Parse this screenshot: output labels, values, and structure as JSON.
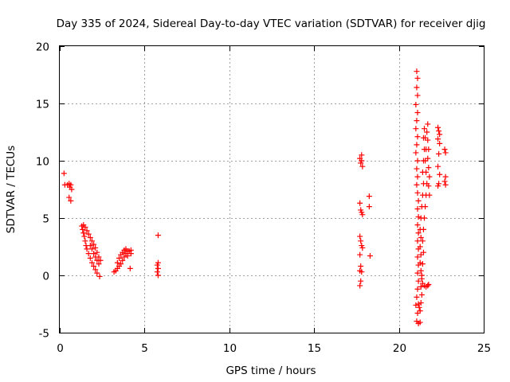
{
  "chart_data": {
    "type": "scatter",
    "title": "Day 335 of 2024, Sidereal Day-to-day VTEC variation (SDTVAR) for receiver djig",
    "xlabel": "GPS time / hours",
    "ylabel": "SDTVAR / TECUs",
    "xlim": [
      0,
      25
    ],
    "ylim": [
      -5,
      20
    ],
    "xticks": [
      "0",
      "5",
      "10",
      "15",
      "20",
      "25"
    ],
    "yticks": [
      "-5",
      "0",
      "5",
      "10",
      "15",
      "20"
    ],
    "grid": true,
    "marker": "+",
    "color": "#ff0000",
    "series": [
      {
        "points": [
          [
            0.25,
            8.9
          ],
          [
            0.3,
            7.9
          ],
          [
            0.45,
            7.9
          ],
          [
            0.55,
            8.0
          ],
          [
            0.6,
            7.7
          ],
          [
            0.65,
            7.9
          ],
          [
            0.7,
            7.5
          ],
          [
            0.55,
            6.8
          ],
          [
            0.65,
            6.5
          ],
          [
            1.3,
            4.3
          ],
          [
            1.35,
            4.0
          ],
          [
            1.4,
            3.7
          ],
          [
            1.45,
            3.4
          ],
          [
            1.5,
            3.0
          ],
          [
            1.55,
            2.6
          ],
          [
            1.6,
            2.3
          ],
          [
            1.7,
            1.9
          ],
          [
            1.8,
            1.5
          ],
          [
            1.9,
            1.1
          ],
          [
            2.0,
            0.8
          ],
          [
            2.1,
            0.5
          ],
          [
            2.2,
            0.2
          ],
          [
            2.35,
            -0.1
          ],
          [
            1.4,
            4.4
          ],
          [
            1.5,
            4.2
          ],
          [
            1.6,
            3.9
          ],
          [
            1.7,
            3.6
          ],
          [
            1.8,
            3.3
          ],
          [
            1.9,
            3.0
          ],
          [
            2.0,
            2.7
          ],
          [
            2.1,
            2.4
          ],
          [
            2.2,
            2.0
          ],
          [
            2.3,
            1.6
          ],
          [
            2.4,
            1.3
          ],
          [
            2.3,
            1.0
          ],
          [
            2.2,
            1.3
          ],
          [
            2.1,
            1.6
          ],
          [
            2.0,
            1.9
          ],
          [
            1.9,
            2.3
          ],
          [
            1.8,
            2.6
          ],
          [
            3.2,
            0.3
          ],
          [
            3.3,
            0.4
          ],
          [
            3.4,
            0.6
          ],
          [
            3.5,
            0.8
          ],
          [
            3.6,
            1.0
          ],
          [
            3.7,
            1.3
          ],
          [
            3.8,
            1.6
          ],
          [
            3.9,
            1.9
          ],
          [
            4.0,
            2.1
          ],
          [
            4.1,
            2.1
          ],
          [
            4.2,
            1.9
          ],
          [
            3.4,
            1.1
          ],
          [
            3.5,
            1.5
          ],
          [
            3.6,
            1.8
          ],
          [
            3.7,
            2.0
          ],
          [
            3.8,
            2.2
          ],
          [
            3.9,
            2.3
          ],
          [
            4.0,
            1.7
          ],
          [
            4.2,
            2.2
          ],
          [
            4.15,
            0.6
          ],
          [
            5.8,
            3.5
          ],
          [
            5.75,
            0.9
          ],
          [
            5.8,
            0.6
          ],
          [
            5.75,
            0.3
          ],
          [
            5.8,
            0.0
          ],
          [
            5.8,
            1.1
          ],
          [
            17.7,
            10.2
          ],
          [
            17.8,
            10.5
          ],
          [
            17.75,
            9.8
          ],
          [
            17.85,
            9.5
          ],
          [
            17.8,
            10.0
          ],
          [
            17.7,
            6.3
          ],
          [
            17.75,
            5.7
          ],
          [
            17.8,
            5.5
          ],
          [
            17.85,
            5.3
          ],
          [
            17.7,
            3.4
          ],
          [
            17.75,
            3.0
          ],
          [
            17.8,
            2.6
          ],
          [
            17.85,
            2.4
          ],
          [
            17.7,
            1.8
          ],
          [
            17.75,
            0.8
          ],
          [
            17.7,
            0.4
          ],
          [
            17.8,
            0.3
          ],
          [
            17.75,
            -0.5
          ],
          [
            17.7,
            -0.9
          ],
          [
            18.25,
            6.9
          ],
          [
            18.25,
            6.0
          ],
          [
            18.3,
            1.7
          ],
          [
            21.05,
            17.8
          ],
          [
            21.1,
            17.2
          ],
          [
            21.05,
            16.4
          ],
          [
            21.1,
            15.7
          ],
          [
            21.0,
            14.9
          ],
          [
            21.1,
            14.2
          ],
          [
            21.05,
            13.5
          ],
          [
            21.0,
            12.8
          ],
          [
            21.1,
            12.1
          ],
          [
            21.05,
            11.4
          ],
          [
            21.0,
            10.7
          ],
          [
            21.1,
            10.0
          ],
          [
            21.05,
            9.3
          ],
          [
            21.1,
            8.6
          ],
          [
            21.05,
            7.9
          ],
          [
            21.1,
            7.2
          ],
          [
            21.15,
            6.5
          ],
          [
            21.1,
            5.8
          ],
          [
            21.15,
            5.1
          ],
          [
            21.1,
            4.4
          ],
          [
            21.15,
            3.7
          ],
          [
            21.1,
            3.0
          ],
          [
            21.15,
            2.3
          ],
          [
            21.1,
            1.6
          ],
          [
            21.15,
            0.9
          ],
          [
            21.1,
            0.2
          ],
          [
            21.15,
            -0.5
          ],
          [
            21.1,
            -1.2
          ],
          [
            21.05,
            -1.9
          ],
          [
            21.0,
            -2.6
          ],
          [
            21.1,
            -3.3
          ],
          [
            21.05,
            -4.0
          ],
          [
            21.15,
            -4.2
          ],
          [
            21.25,
            -4.1
          ],
          [
            21.25,
            4.0
          ],
          [
            21.3,
            3.3
          ],
          [
            21.25,
            2.5
          ],
          [
            21.3,
            1.8
          ],
          [
            21.25,
            1.1
          ],
          [
            21.3,
            0.4
          ],
          [
            21.35,
            -0.3
          ],
          [
            21.3,
            -1.0
          ],
          [
            21.35,
            -1.7
          ],
          [
            21.3,
            -2.4
          ],
          [
            21.25,
            -3.1
          ],
          [
            21.2,
            -2.8
          ],
          [
            21.15,
            -2.5
          ],
          [
            21.3,
            5.0
          ],
          [
            21.35,
            6.0
          ],
          [
            21.4,
            7.0
          ],
          [
            21.45,
            8.0
          ],
          [
            21.4,
            9.0
          ],
          [
            21.45,
            10.0
          ],
          [
            21.5,
            11.0
          ],
          [
            21.45,
            12.0
          ],
          [
            21.5,
            12.8
          ],
          [
            21.55,
            12.0
          ],
          [
            21.6,
            11.0
          ],
          [
            21.55,
            10.0
          ],
          [
            21.6,
            9.0
          ],
          [
            21.65,
            8.0
          ],
          [
            21.6,
            7.0
          ],
          [
            21.55,
            6.0
          ],
          [
            21.5,
            5.0
          ],
          [
            21.45,
            4.0
          ],
          [
            21.4,
            3.0
          ],
          [
            21.45,
            2.0
          ],
          [
            21.4,
            1.0
          ],
          [
            21.35,
            0.0
          ],
          [
            21.4,
            -0.7
          ],
          [
            21.5,
            -0.9
          ],
          [
            21.6,
            -1.0
          ],
          [
            21.7,
            -0.9
          ],
          [
            21.75,
            -0.8
          ],
          [
            21.7,
            13.2
          ],
          [
            21.65,
            12.5
          ],
          [
            21.7,
            11.8
          ],
          [
            21.75,
            11.0
          ],
          [
            21.7,
            10.2
          ],
          [
            21.75,
            9.4
          ],
          [
            21.8,
            8.6
          ],
          [
            21.75,
            7.8
          ],
          [
            21.8,
            7.0
          ],
          [
            22.3,
            12.9
          ],
          [
            22.35,
            12.6
          ],
          [
            22.4,
            12.3
          ],
          [
            22.3,
            11.9
          ],
          [
            22.4,
            11.5
          ],
          [
            22.35,
            10.6
          ],
          [
            22.3,
            9.5
          ],
          [
            22.4,
            8.8
          ],
          [
            22.35,
            8.0
          ],
          [
            22.3,
            7.8
          ],
          [
            22.75,
            10.7
          ],
          [
            22.7,
            11.0
          ],
          [
            22.75,
            8.6
          ],
          [
            22.7,
            8.2
          ],
          [
            22.75,
            7.9
          ]
        ]
      }
    ]
  }
}
